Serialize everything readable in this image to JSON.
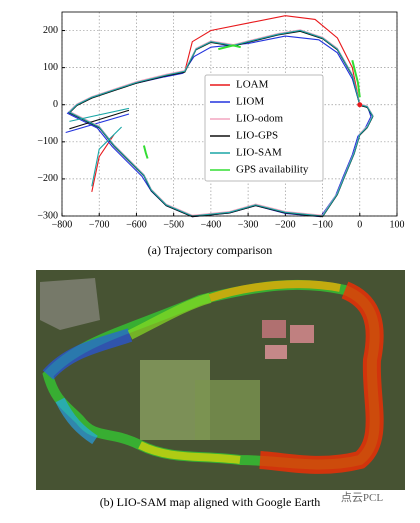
{
  "figure_a": {
    "chart_data": {
      "type": "line",
      "xlim": [
        -800,
        100
      ],
      "ylim": [
        -300,
        250
      ],
      "xticks": [
        {
          "value": -800,
          "label": "−800"
        },
        {
          "value": -700,
          "label": "−700"
        },
        {
          "value": -600,
          "label": "−600"
        },
        {
          "value": -500,
          "label": "−500"
        },
        {
          "value": -400,
          "label": "−400"
        },
        {
          "value": -300,
          "label": "−300"
        },
        {
          "value": -200,
          "label": "−200"
        },
        {
          "value": -100,
          "label": "−100"
        },
        0,
        100
      ],
      "yticks": [
        {
          "value": -300,
          "label": "−300"
        },
        {
          "value": -200,
          "label": "−200"
        },
        {
          "value": -100,
          "label": "−100"
        },
        0,
        100,
        200
      ],
      "grid": true,
      "legend": "center",
      "series": [
        {
          "name": "LOAM",
          "color": "#e8191c",
          "x": [
            0,
            20,
            35,
            20,
            0,
            -15,
            -40,
            -60,
            -100,
            -200,
            -280,
            -350,
            -450,
            -520,
            -560,
            -580,
            -620,
            -660,
            -700,
            -740,
            -780,
            -760,
            -720,
            -660,
            -600,
            -520,
            -470,
            -450,
            -400,
            -300,
            -200,
            -120,
            -60,
            -20,
            0,
            null,
            -720,
            -700,
            -660
          ],
          "y": [
            0,
            -5,
            -30,
            -60,
            -80,
            -130,
            -190,
            -240,
            -300,
            -290,
            -270,
            -290,
            -300,
            -270,
            -230,
            -190,
            -150,
            -110,
            -60,
            -40,
            -20,
            0,
            20,
            40,
            60,
            80,
            90,
            170,
            200,
            220,
            240,
            230,
            180,
            100,
            0,
            null,
            -235,
            -140,
            -80
          ]
        },
        {
          "name": "LIOM",
          "color": "#2233dd",
          "x": [
            0,
            22,
            30,
            15,
            -5,
            -20,
            -45,
            -65,
            -105,
            -200,
            -280,
            -350,
            -450,
            -520,
            -560,
            -585,
            -625,
            -665,
            -705,
            -745,
            -785,
            -765,
            -725,
            -665,
            -605,
            -525,
            -475,
            -445,
            -400,
            -300,
            -200,
            -110,
            -60,
            -20,
            0,
            null,
            -790,
            -620
          ],
          "y": [
            0,
            -8,
            -32,
            -62,
            -85,
            -135,
            -195,
            -245,
            -302,
            -293,
            -272,
            -292,
            -302,
            -272,
            -233,
            -193,
            -153,
            -113,
            -63,
            -43,
            -23,
            -3,
            17,
            37,
            57,
            75,
            85,
            130,
            155,
            165,
            185,
            175,
            140,
            70,
            0,
            null,
            -75,
            -25
          ]
        },
        {
          "name": "LIO-odom",
          "color": "#f4a6c0",
          "x": [
            0,
            20,
            35,
            20,
            0,
            -15,
            -40,
            -60,
            -100,
            -200,
            -280,
            -350,
            -450,
            -520,
            -560,
            -580,
            -620,
            -660,
            -700,
            -740,
            -780,
            -760,
            -720,
            -660,
            -600,
            -520,
            -470,
            -440,
            -400,
            -340,
            -300,
            -220,
            -160,
            -100,
            -60,
            -20,
            0
          ],
          "y": [
            2,
            -3,
            -28,
            -58,
            -78,
            -128,
            -188,
            -238,
            -298,
            -288,
            -268,
            -288,
            -298,
            -268,
            -228,
            -188,
            -148,
            -108,
            -58,
            -38,
            -18,
            2,
            22,
            42,
            62,
            82,
            92,
            152,
            172,
            162,
            172,
            192,
            202,
            182,
            152,
            82,
            2
          ]
        },
        {
          "name": "LIO-GPS",
          "color": "#111111",
          "x": [
            0,
            20,
            35,
            20,
            0,
            -15,
            -40,
            -60,
            -100,
            -200,
            -280,
            -350,
            -450,
            -520,
            -560,
            -580,
            -620,
            -660,
            -700,
            -740,
            -780,
            -760,
            -720,
            -660,
            -600,
            -520,
            -470,
            -440,
            -400,
            -340,
            -300,
            -220,
            -160,
            -100,
            -60,
            -20,
            0,
            null,
            -780,
            -620
          ],
          "y": [
            -2,
            -7,
            -32,
            -62,
            -82,
            -132,
            -192,
            -242,
            -302,
            -292,
            -272,
            -292,
            -302,
            -272,
            -232,
            -192,
            -152,
            -112,
            -62,
            -42,
            -22,
            -2,
            18,
            38,
            58,
            78,
            88,
            148,
            168,
            158,
            168,
            188,
            198,
            178,
            148,
            78,
            -2,
            null,
            -65,
            -15
          ]
        },
        {
          "name": "LIO-SAM",
          "color": "#1aa6a6",
          "x": [
            0,
            20,
            35,
            20,
            0,
            -15,
            -40,
            -60,
            -100,
            -200,
            -280,
            -350,
            -450,
            -520,
            -560,
            -580,
            -620,
            -660,
            -700,
            -740,
            -780,
            -760,
            -720,
            -660,
            -600,
            -520,
            -470,
            -440,
            -400,
            -340,
            -300,
            -220,
            -160,
            -100,
            -60,
            -20,
            0,
            null,
            -720,
            -700,
            -640,
            null,
            -780,
            -620
          ],
          "y": [
            0,
            -5,
            -30,
            -60,
            -80,
            -130,
            -190,
            -240,
            -300,
            -290,
            -270,
            -290,
            -300,
            -270,
            -230,
            -190,
            -150,
            -110,
            -60,
            -40,
            -20,
            0,
            20,
            40,
            60,
            80,
            90,
            150,
            170,
            160,
            170,
            190,
            200,
            180,
            150,
            80,
            0,
            null,
            -220,
            -120,
            -60,
            null,
            -45,
            -10
          ]
        },
        {
          "name": "GPS availability",
          "color": "#33dd33",
          "x": [
            -380,
            -340,
            -320,
            null,
            -20,
            -5,
            0,
            null,
            -580,
            -575,
            -570
          ],
          "y": [
            150,
            160,
            155,
            null,
            120,
            60,
            20,
            null,
            -110,
            -130,
            -145
          ]
        }
      ]
    },
    "caption": "(a) Trajectory comparison"
  },
  "figure_b": {
    "caption": "(b) LIO-SAM map aligned with Google Earth",
    "watermark": "点云PCL"
  }
}
